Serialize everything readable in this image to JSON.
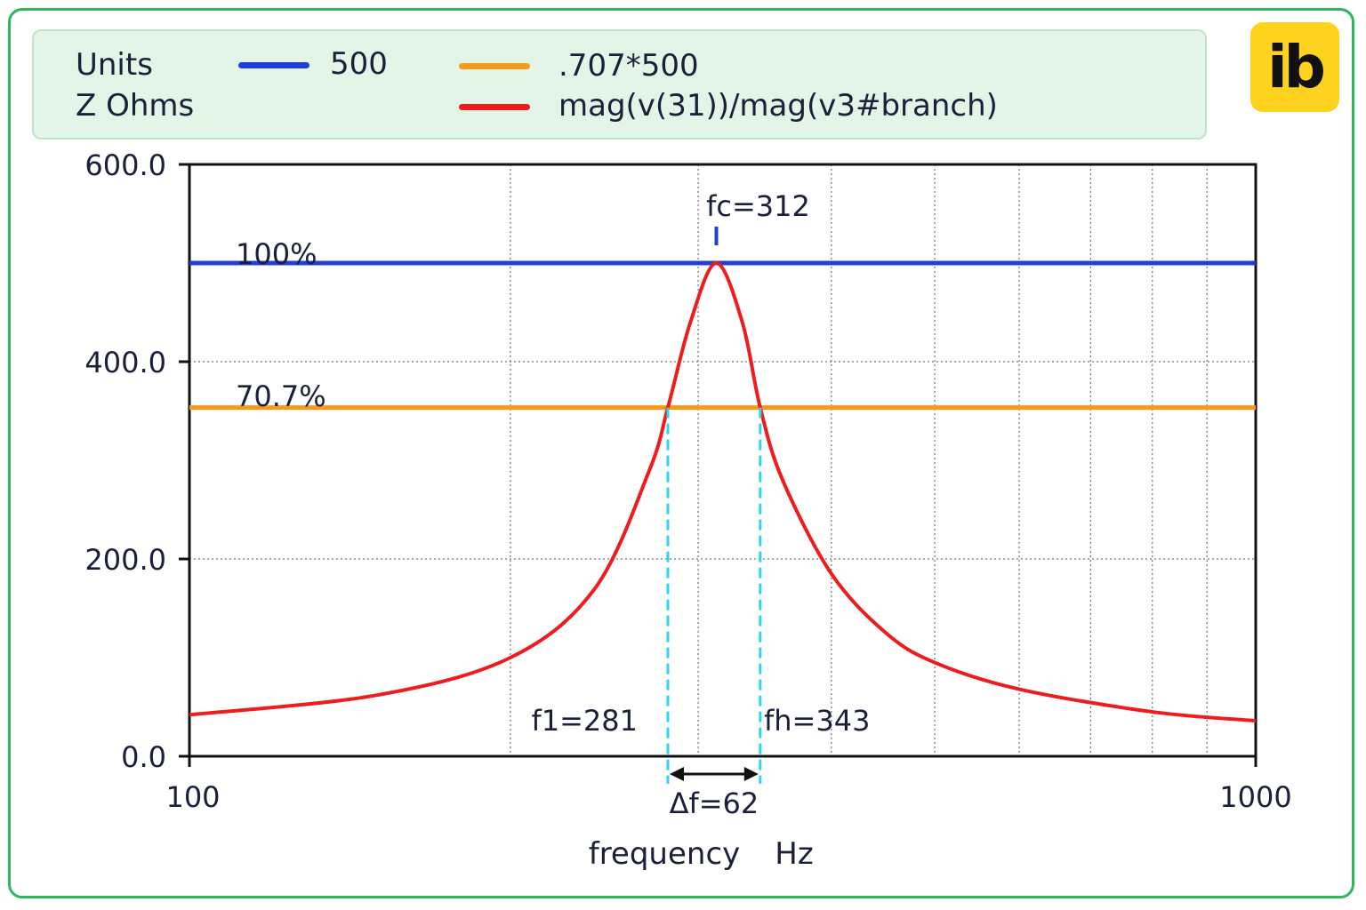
{
  "legend": {
    "units_label": "Units",
    "units_value": "Z Ohms",
    "entries": [
      {
        "label": "500",
        "color": "#1f3fd6"
      },
      {
        "label": ".707*500",
        "color": "#f59a19"
      },
      {
        "label": "mag(v(31))/mag(v3#branch)",
        "color": "#ee1c1c"
      }
    ]
  },
  "logo": {
    "text": "ib"
  },
  "chart_data": {
    "type": "line",
    "xscale": "log",
    "xlim": [
      100,
      1000
    ],
    "ylim": [
      0,
      600
    ],
    "grid": true,
    "xlabel": "frequency",
    "xunit": "Hz",
    "y_ticks": [
      "600.0",
      "400.0",
      "200.0",
      "0.0"
    ],
    "x_ticks": [
      "100",
      "1000"
    ],
    "series": [
      {
        "name": "500",
        "color": "#1f3fd6",
        "x": [
          100,
          1000
        ],
        "y": [
          500,
          500
        ]
      },
      {
        "name": ".707*500",
        "color": "#f59a19",
        "x": [
          100,
          1000
        ],
        "y": [
          353.5,
          353.5
        ]
      },
      {
        "name": "mag(v(31))/mag(v3#branch)",
        "color": "#ee1c1c",
        "x": [
          100,
          150,
          200,
          240,
          270,
          281,
          295,
          312,
          330,
          343,
          360,
          400,
          450,
          500,
          600,
          800,
          1000
        ],
        "y": [
          42,
          62,
          100,
          170,
          290,
          353.5,
          440,
          500,
          440,
          353.5,
          280,
          185,
          125,
          95,
          68,
          45,
          36
        ]
      }
    ],
    "annotations": {
      "fc": {
        "text": "fc=312",
        "x": 312
      },
      "f1": {
        "text": "f1=281",
        "x": 281
      },
      "fh": {
        "text": "fh=343",
        "x": 343
      },
      "df": {
        "text": "Δf=62"
      },
      "pct100": {
        "text": "100%"
      },
      "pct707": {
        "text": "70.7%"
      }
    }
  }
}
